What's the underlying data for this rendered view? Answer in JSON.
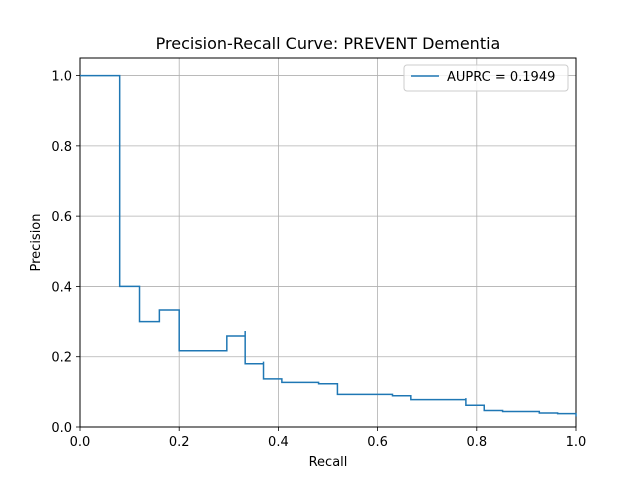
{
  "chart_data": {
    "type": "line",
    "title": "Precision-Recall Curve: PREVENT Dementia",
    "xlabel": "Recall",
    "ylabel": "Precision",
    "xlim": [
      0.0,
      1.0
    ],
    "ylim": [
      0.0,
      1.05
    ],
    "xticks": [
      0.0,
      0.2,
      0.4,
      0.6,
      0.8,
      1.0
    ],
    "xtick_labels": [
      "0.0",
      "0.2",
      "0.4",
      "0.6",
      "0.8",
      "1.0"
    ],
    "yticks": [
      0.0,
      0.2,
      0.4,
      0.6,
      0.8,
      1.0
    ],
    "ytick_labels": [
      "0.0",
      "0.2",
      "0.4",
      "0.6",
      "0.8",
      "1.0"
    ],
    "grid": true,
    "legend_position": "top-right",
    "series": [
      {
        "name": "AUPRC = 0.1949",
        "color": "#1f77b4",
        "step": "post",
        "points": [
          [
            0.0,
            1.0
          ],
          [
            0.08,
            1.0
          ],
          [
            0.08,
            0.4
          ],
          [
            0.12,
            0.4
          ],
          [
            0.12,
            0.3
          ],
          [
            0.16,
            0.3
          ],
          [
            0.16,
            0.333
          ],
          [
            0.2,
            0.333
          ],
          [
            0.2,
            0.217
          ],
          [
            0.296,
            0.217
          ],
          [
            0.296,
            0.259
          ],
          [
            0.333,
            0.259
          ],
          [
            0.333,
            0.273
          ],
          [
            0.333,
            0.18
          ],
          [
            0.37,
            0.18
          ],
          [
            0.37,
            0.186
          ],
          [
            0.37,
            0.137
          ],
          [
            0.407,
            0.137
          ],
          [
            0.407,
            0.127
          ],
          [
            0.481,
            0.127
          ],
          [
            0.481,
            0.123
          ],
          [
            0.519,
            0.123
          ],
          [
            0.519,
            0.093
          ],
          [
            0.63,
            0.093
          ],
          [
            0.63,
            0.089
          ],
          [
            0.667,
            0.089
          ],
          [
            0.667,
            0.078
          ],
          [
            0.778,
            0.078
          ],
          [
            0.778,
            0.082
          ],
          [
            0.778,
            0.062
          ],
          [
            0.815,
            0.062
          ],
          [
            0.815,
            0.047
          ],
          [
            0.852,
            0.047
          ],
          [
            0.852,
            0.044
          ],
          [
            0.926,
            0.044
          ],
          [
            0.926,
            0.04
          ],
          [
            0.963,
            0.04
          ],
          [
            0.963,
            0.038
          ],
          [
            1.0,
            0.038
          ],
          [
            1.0,
            0.03
          ]
        ]
      }
    ]
  }
}
